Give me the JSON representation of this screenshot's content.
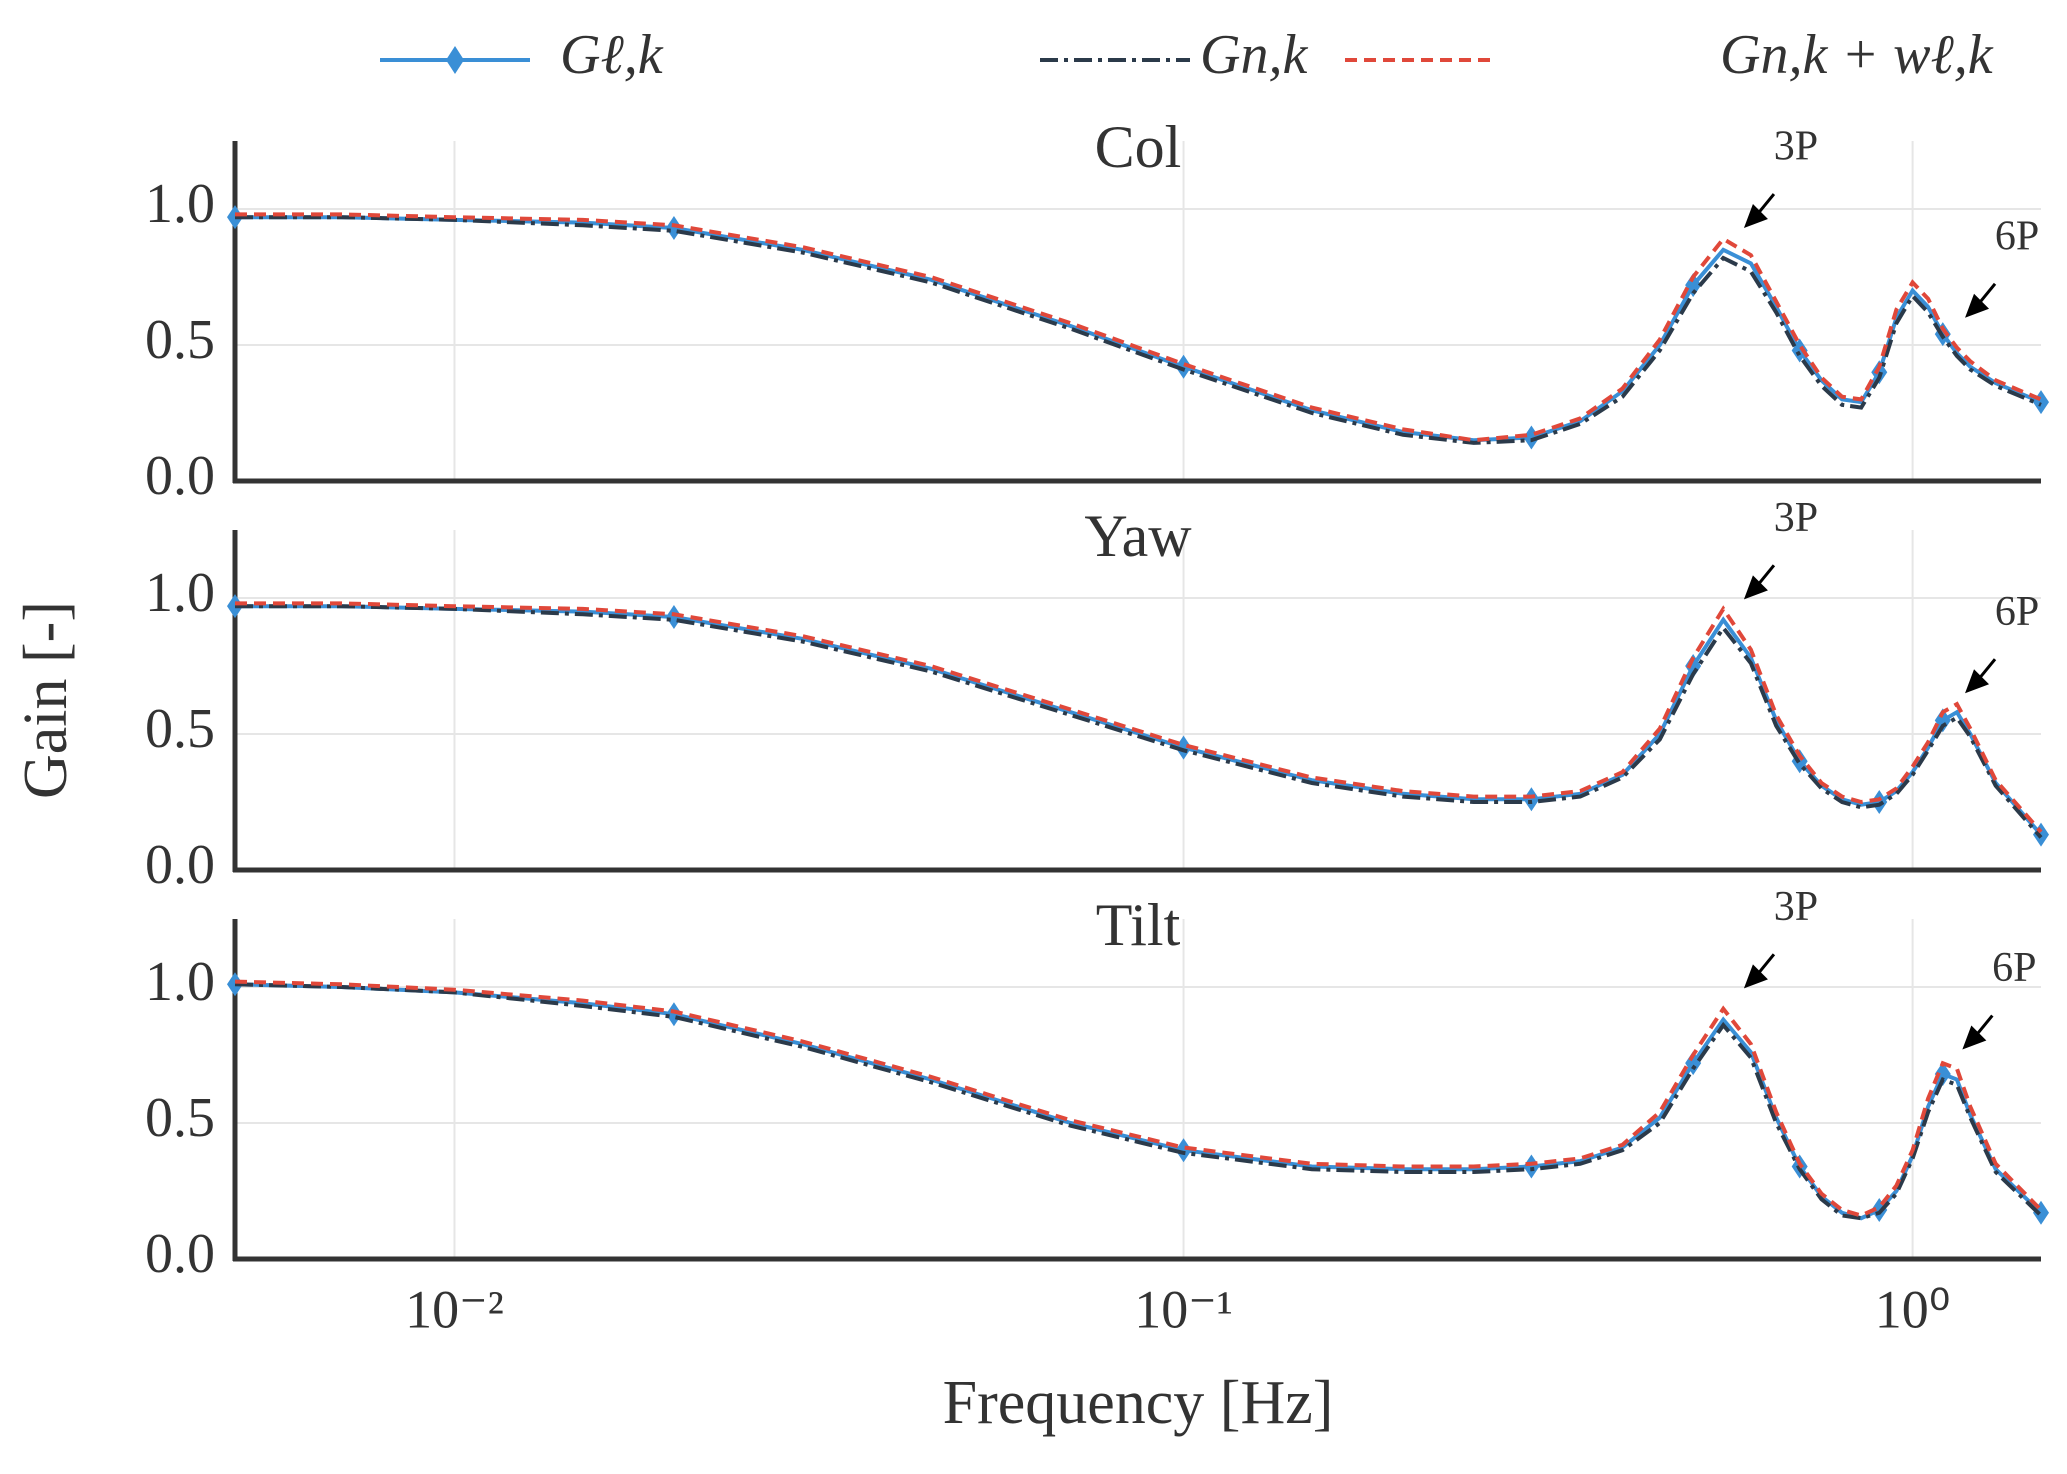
{
  "chart_data": [
    {
      "type": "line",
      "title": "Col",
      "xscale": "log",
      "grid": true,
      "legend": "top",
      "xlim": [
        0.005,
        1.5
      ],
      "ylim": [
        0,
        1.25
      ],
      "xticks": [
        {
          "value": 0.01,
          "label": "10⁻²"
        },
        {
          "value": 0.1,
          "label": "10⁻¹"
        },
        {
          "value": 1,
          "label": "10⁰"
        }
      ],
      "yticks": [
        {
          "value": 0,
          "label": "0.0"
        },
        {
          "value": 0.5,
          "label": "0.5"
        },
        {
          "value": 1,
          "label": "1.0"
        }
      ],
      "x": [
        0.005,
        0.007,
        0.01,
        0.015,
        0.02,
        0.03,
        0.045,
        0.07,
        0.1,
        0.15,
        0.2,
        0.25,
        0.3,
        0.35,
        0.4,
        0.45,
        0.5,
        0.55,
        0.6,
        0.65,
        0.7,
        0.75,
        0.8,
        0.85,
        0.9,
        0.95,
        1.0,
        1.05,
        1.1,
        1.15,
        1.2,
        1.3,
        1.5
      ],
      "series": [
        {
          "name": "Gℓ,k",
          "color": "#3a8fd6",
          "dash": "solid",
          "marker": "diamond",
          "values": [
            0.97,
            0.97,
            0.96,
            0.95,
            0.93,
            0.85,
            0.74,
            0.57,
            0.42,
            0.26,
            0.18,
            0.15,
            0.16,
            0.22,
            0.33,
            0.5,
            0.72,
            0.85,
            0.8,
            0.64,
            0.48,
            0.37,
            0.3,
            0.29,
            0.4,
            0.6,
            0.7,
            0.64,
            0.54,
            0.47,
            0.42,
            0.36,
            0.29
          ]
        },
        {
          "name": "Gn,k",
          "color": "#2b3a4a",
          "dash": "dashdot",
          "values": [
            0.97,
            0.97,
            0.96,
            0.94,
            0.92,
            0.84,
            0.73,
            0.56,
            0.41,
            0.25,
            0.17,
            0.14,
            0.15,
            0.21,
            0.31,
            0.48,
            0.69,
            0.82,
            0.77,
            0.62,
            0.46,
            0.35,
            0.28,
            0.27,
            0.38,
            0.58,
            0.68,
            0.62,
            0.53,
            0.46,
            0.41,
            0.35,
            0.28
          ]
        },
        {
          "name": "Gn,k + wℓ,k",
          "color": "#e0483a",
          "dash": "dashed",
          "values": [
            0.98,
            0.98,
            0.97,
            0.96,
            0.94,
            0.86,
            0.75,
            0.58,
            0.43,
            0.27,
            0.19,
            0.15,
            0.17,
            0.23,
            0.34,
            0.52,
            0.75,
            0.89,
            0.83,
            0.66,
            0.5,
            0.38,
            0.31,
            0.3,
            0.42,
            0.63,
            0.73,
            0.67,
            0.56,
            0.49,
            0.44,
            0.37,
            0.3
          ]
        }
      ],
      "annotations": [
        {
          "text": "3P",
          "x": 0.587,
          "y": 0.93
        },
        {
          "text": "6P",
          "x": 1.18,
          "y": 0.6
        }
      ]
    },
    {
      "type": "line",
      "title": "Yaw",
      "xscale": "log",
      "grid": true,
      "ylabel": "Gain [-]",
      "xlim": [
        0.005,
        1.5
      ],
      "ylim": [
        0,
        1.25
      ],
      "xticks": [
        {
          "value": 0.01,
          "label": "10⁻²"
        },
        {
          "value": 0.1,
          "label": "10⁻¹"
        },
        {
          "value": 1,
          "label": "10⁰"
        }
      ],
      "yticks": [
        {
          "value": 0,
          "label": "0.0"
        },
        {
          "value": 0.5,
          "label": "0.5"
        },
        {
          "value": 1,
          "label": "1.0"
        }
      ],
      "x": [
        0.005,
        0.007,
        0.01,
        0.015,
        0.02,
        0.03,
        0.045,
        0.07,
        0.1,
        0.15,
        0.2,
        0.25,
        0.3,
        0.35,
        0.4,
        0.45,
        0.5,
        0.55,
        0.6,
        0.65,
        0.7,
        0.75,
        0.8,
        0.85,
        0.9,
        0.95,
        1.0,
        1.05,
        1.1,
        1.15,
        1.2,
        1.3,
        1.5
      ],
      "series": [
        {
          "name": "Gℓ,k",
          "color": "#3a8fd6",
          "dash": "solid",
          "marker": "diamond",
          "values": [
            0.97,
            0.97,
            0.96,
            0.95,
            0.93,
            0.85,
            0.74,
            0.58,
            0.45,
            0.33,
            0.28,
            0.26,
            0.26,
            0.28,
            0.35,
            0.5,
            0.75,
            0.92,
            0.78,
            0.55,
            0.4,
            0.31,
            0.26,
            0.24,
            0.25,
            0.29,
            0.36,
            0.45,
            0.55,
            0.58,
            0.5,
            0.32,
            0.13
          ]
        },
        {
          "name": "Gn,k",
          "color": "#2b3a4a",
          "dash": "dashdot",
          "values": [
            0.97,
            0.97,
            0.96,
            0.94,
            0.92,
            0.84,
            0.73,
            0.57,
            0.44,
            0.32,
            0.27,
            0.25,
            0.25,
            0.27,
            0.34,
            0.48,
            0.72,
            0.89,
            0.76,
            0.53,
            0.39,
            0.3,
            0.25,
            0.23,
            0.24,
            0.28,
            0.35,
            0.44,
            0.53,
            0.56,
            0.49,
            0.31,
            0.12
          ]
        },
        {
          "name": "Gn,k + wℓ,k",
          "color": "#e0483a",
          "dash": "dashed",
          "values": [
            0.98,
            0.98,
            0.97,
            0.96,
            0.94,
            0.86,
            0.75,
            0.59,
            0.46,
            0.34,
            0.29,
            0.27,
            0.27,
            0.29,
            0.36,
            0.52,
            0.78,
            0.96,
            0.81,
            0.57,
            0.42,
            0.32,
            0.27,
            0.25,
            0.26,
            0.3,
            0.38,
            0.47,
            0.58,
            0.61,
            0.52,
            0.33,
            0.14
          ]
        }
      ],
      "annotations": [
        {
          "text": "3P",
          "x": 0.587,
          "y": 0.995
        },
        {
          "text": "6P",
          "x": 1.18,
          "y": 0.65
        }
      ]
    },
    {
      "type": "line",
      "title": "Tilt",
      "xscale": "log",
      "grid": true,
      "xlabel": "Frequency [Hz]",
      "xlim": [
        0.005,
        1.5
      ],
      "ylim": [
        0,
        1.25
      ],
      "xticks": [
        {
          "value": 0.01,
          "label": "10⁻²"
        },
        {
          "value": 0.1,
          "label": "10⁻¹"
        },
        {
          "value": 1,
          "label": "10⁰"
        }
      ],
      "yticks": [
        {
          "value": 0,
          "label": "0.0"
        },
        {
          "value": 0.5,
          "label": "0.5"
        },
        {
          "value": 1,
          "label": "1.0"
        }
      ],
      "x": [
        0.005,
        0.007,
        0.01,
        0.015,
        0.02,
        0.03,
        0.045,
        0.07,
        0.1,
        0.15,
        0.2,
        0.25,
        0.3,
        0.35,
        0.4,
        0.45,
        0.5,
        0.55,
        0.6,
        0.65,
        0.7,
        0.75,
        0.8,
        0.85,
        0.9,
        0.95,
        1.0,
        1.05,
        1.1,
        1.15,
        1.2,
        1.3,
        1.5
      ],
      "series": [
        {
          "name": "Gℓ,k",
          "color": "#3a8fd6",
          "dash": "solid",
          "marker": "diamond",
          "values": [
            1.01,
            1.0,
            0.98,
            0.94,
            0.9,
            0.79,
            0.66,
            0.5,
            0.4,
            0.34,
            0.33,
            0.33,
            0.34,
            0.36,
            0.41,
            0.52,
            0.72,
            0.88,
            0.76,
            0.52,
            0.34,
            0.23,
            0.17,
            0.15,
            0.18,
            0.25,
            0.38,
            0.56,
            0.68,
            0.66,
            0.53,
            0.33,
            0.17
          ]
        },
        {
          "name": "Gn,k",
          "color": "#2b3a4a",
          "dash": "dashdot",
          "values": [
            1.01,
            1.0,
            0.98,
            0.93,
            0.89,
            0.78,
            0.65,
            0.49,
            0.39,
            0.33,
            0.32,
            0.32,
            0.33,
            0.35,
            0.4,
            0.5,
            0.7,
            0.86,
            0.74,
            0.5,
            0.33,
            0.22,
            0.16,
            0.15,
            0.17,
            0.24,
            0.37,
            0.54,
            0.66,
            0.64,
            0.52,
            0.32,
            0.16
          ]
        },
        {
          "name": "Gn,k + wℓ,k",
          "color": "#e0483a",
          "dash": "dashed",
          "values": [
            1.02,
            1.01,
            0.99,
            0.95,
            0.91,
            0.8,
            0.67,
            0.51,
            0.41,
            0.35,
            0.34,
            0.34,
            0.35,
            0.37,
            0.42,
            0.54,
            0.75,
            0.92,
            0.79,
            0.54,
            0.35,
            0.24,
            0.18,
            0.16,
            0.19,
            0.27,
            0.4,
            0.59,
            0.72,
            0.7,
            0.56,
            0.35,
            0.18
          ]
        }
      ],
      "annotations": [
        {
          "text": "3P",
          "x": 0.587,
          "y": 0.995
        },
        {
          "text": "6P",
          "x": 1.17,
          "y": 0.77
        }
      ]
    }
  ]
}
